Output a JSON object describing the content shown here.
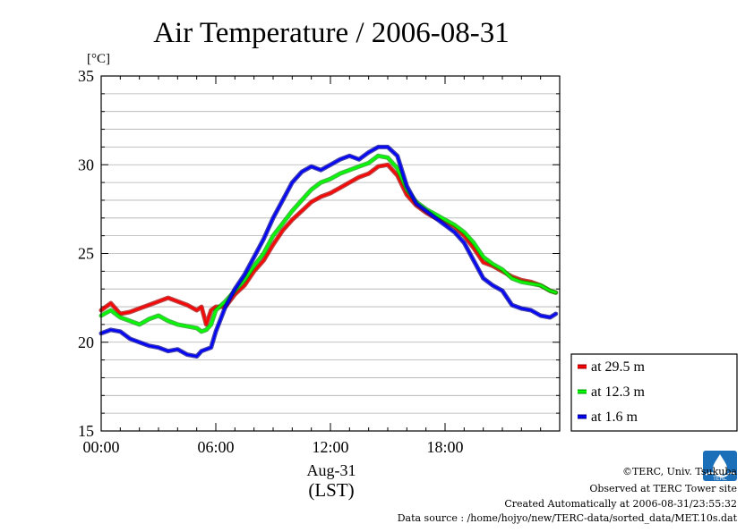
{
  "chart_data": {
    "type": "line",
    "title": "Air Temperature / 2006-08-31",
    "ylabel": "[°C]",
    "xlabel": "Aug-31",
    "xlabel2": "(LST)",
    "xlim": [
      0,
      24
    ],
    "ylim": [
      15,
      35
    ],
    "yticks": [
      15,
      20,
      25,
      30,
      35
    ],
    "xticks": [
      {
        "value": 0,
        "label": "00:00"
      },
      {
        "value": 6,
        "label": "06:00"
      },
      {
        "value": 12,
        "label": "12:00"
      },
      {
        "value": 18,
        "label": "18:00"
      }
    ],
    "grid": "horizontal",
    "legend_position": "right",
    "series": [
      {
        "name": "at 29.5 m",
        "color": "#ff0000",
        "x": [
          0,
          0.5,
          1,
          1.5,
          2,
          2.5,
          3,
          3.5,
          4,
          4.5,
          5,
          5.25,
          5.5,
          5.75,
          6,
          6.5,
          7,
          7.5,
          8,
          8.5,
          9,
          9.5,
          10,
          10.5,
          11,
          11.5,
          12,
          12.5,
          13,
          13.5,
          14,
          14.5,
          15,
          15.5,
          16,
          16.5,
          17,
          17.5,
          18,
          18.5,
          19,
          19.5,
          20,
          20.5,
          21,
          21.5,
          22,
          22.5,
          23,
          23.5,
          23.8
        ],
        "values": [
          21.8,
          22.2,
          21.6,
          21.7,
          21.9,
          22.1,
          22.3,
          22.5,
          22.3,
          22.1,
          21.8,
          22.0,
          21.0,
          21.8,
          22.0,
          22.0,
          22.7,
          23.2,
          24.0,
          24.6,
          25.5,
          26.3,
          26.9,
          27.4,
          27.9,
          28.2,
          28.4,
          28.7,
          29.0,
          29.3,
          29.5,
          29.9,
          30.0,
          29.4,
          28.3,
          27.7,
          27.3,
          27.0,
          26.8,
          26.5,
          26.0,
          25.3,
          24.5,
          24.3,
          24.0,
          23.7,
          23.5,
          23.4,
          23.2,
          22.9,
          22.8
        ]
      },
      {
        "name": "at 12.3 m",
        "color": "#00ff00",
        "x": [
          0,
          0.5,
          1,
          1.5,
          2,
          2.5,
          3,
          3.5,
          4,
          4.5,
          5,
          5.25,
          5.5,
          5.75,
          6,
          6.5,
          7,
          7.5,
          8,
          8.5,
          9,
          9.5,
          10,
          10.5,
          11,
          11.5,
          12,
          12.5,
          13,
          13.5,
          14,
          14.5,
          15,
          15.5,
          16,
          16.5,
          17,
          17.5,
          18,
          18.5,
          19,
          19.5,
          20,
          20.5,
          21,
          21.5,
          22,
          22.5,
          23,
          23.5,
          23.8
        ],
        "values": [
          21.5,
          21.8,
          21.4,
          21.2,
          21.0,
          21.3,
          21.5,
          21.2,
          21.0,
          20.9,
          20.8,
          20.6,
          20.7,
          21.0,
          21.8,
          22.3,
          22.9,
          23.5,
          24.3,
          25.0,
          26.0,
          26.7,
          27.4,
          28.0,
          28.6,
          29.0,
          29.2,
          29.5,
          29.7,
          29.9,
          30.1,
          30.5,
          30.4,
          29.8,
          28.6,
          27.9,
          27.5,
          27.2,
          26.9,
          26.6,
          26.2,
          25.6,
          24.8,
          24.4,
          24.1,
          23.6,
          23.4,
          23.3,
          23.2,
          22.9,
          22.8
        ]
      },
      {
        "name": "at 1.6 m",
        "color": "#0000ff",
        "x": [
          0,
          0.5,
          1,
          1.5,
          2,
          2.5,
          3,
          3.5,
          4,
          4.5,
          5,
          5.25,
          5.5,
          5.75,
          6,
          6.5,
          7,
          7.5,
          8,
          8.5,
          9,
          9.5,
          10,
          10.5,
          11,
          11.5,
          12,
          12.5,
          13,
          13.5,
          14,
          14.5,
          15,
          15.5,
          16,
          16.5,
          17,
          17.5,
          18,
          18.5,
          19,
          19.5,
          20,
          20.5,
          21,
          21.5,
          22,
          22.5,
          23,
          23.5,
          23.8
        ],
        "values": [
          20.5,
          20.7,
          20.6,
          20.2,
          20.0,
          19.8,
          19.7,
          19.5,
          19.6,
          19.3,
          19.2,
          19.5,
          19.6,
          19.7,
          20.6,
          22.0,
          23.0,
          23.8,
          24.8,
          25.8,
          27.0,
          28.0,
          29.0,
          29.6,
          29.9,
          29.7,
          30.0,
          30.3,
          30.5,
          30.3,
          30.7,
          31.0,
          31.0,
          30.5,
          28.8,
          27.8,
          27.4,
          27.0,
          26.6,
          26.2,
          25.6,
          24.6,
          23.6,
          23.2,
          22.9,
          22.1,
          21.9,
          21.8,
          21.5,
          21.4,
          21.6
        ]
      }
    ]
  },
  "footer": {
    "copyright": "©TERC, Univ. Tsukuba",
    "observed": "Observed at TERC Tower site",
    "created": "Created Automatically at 2006-08-31/23:55:32",
    "source": "Data source : /home/hojyo/new/TERC-data/sorted_data/MET.10s.dat",
    "logo_text": "TERC"
  }
}
